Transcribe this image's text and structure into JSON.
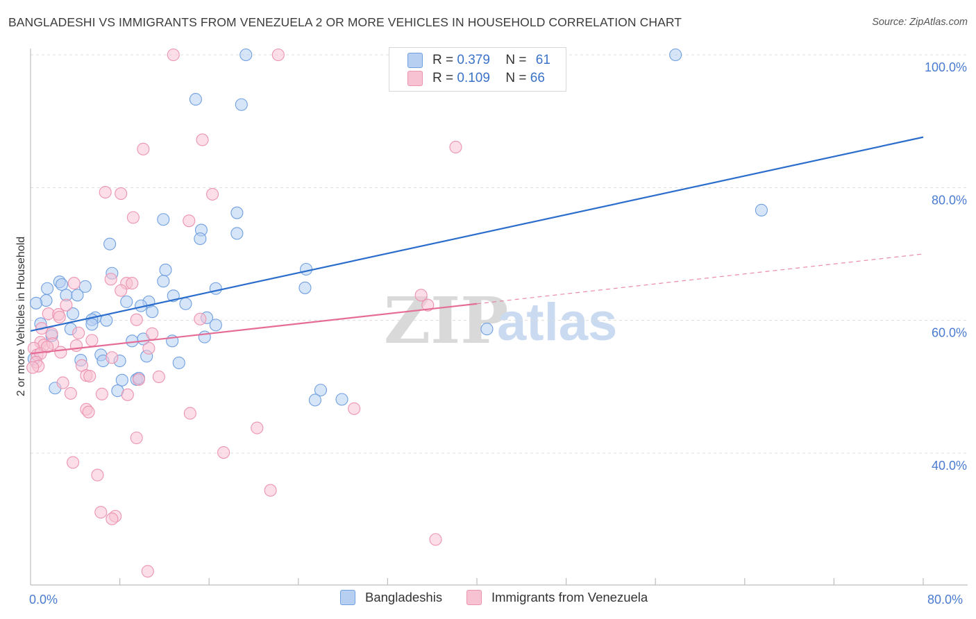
{
  "title": "BANGLADESHI VS IMMIGRANTS FROM VENEZUELA 2 OR MORE VEHICLES IN HOUSEHOLD CORRELATION CHART",
  "source": "Source: ZipAtlas.com",
  "watermark": {
    "zip": "ZIP",
    "atlas": "atlas"
  },
  "legend_top": [
    {
      "r_label": "R =",
      "r_value": "0.379",
      "n_label": "N =",
      "n_value": "61"
    },
    {
      "r_label": "R =",
      "r_value": "0.109",
      "n_label": "N =",
      "n_value": "66"
    }
  ],
  "colors": {
    "blue_fill": "#b7d0f2",
    "blue_stroke": "#6f9fe0",
    "blue_line": "#2a6dcc",
    "pink_fill": "#f7c3d3",
    "pink_stroke": "#ec93b0",
    "pink_line": "#e56c96",
    "tick": "#4a7bd0",
    "grid": "#dcdcdc"
  },
  "chart_data": {
    "type": "scatter",
    "title": "BANGLADESHI VS IMMIGRANTS FROM VENEZUELA 2 OR MORE VEHICLES IN HOUSEHOLD CORRELATION CHART",
    "xlabel": "",
    "ylabel": "2 or more Vehicles in Household",
    "xlim": [
      0,
      80
    ],
    "ylim": [
      20,
      102
    ],
    "x_ticks": [
      "0.0%",
      "80.0%"
    ],
    "y_ticks": [
      {
        "value": 100,
        "label": "100.0%"
      },
      {
        "value": 80,
        "label": "80.0%"
      },
      {
        "value": 60,
        "label": "60.0%"
      },
      {
        "value": 40,
        "label": "40.0%"
      }
    ],
    "grid": true,
    "legend_position": "bottom",
    "series": [
      {
        "name": "Bangladeshis",
        "color": "#6f9fe0",
        "trend": {
          "x": [
            0,
            80
          ],
          "y": [
            58.4,
            87.6
          ],
          "dashed_from": null
        },
        "points": [
          [
            19.3,
            100
          ],
          [
            57.8,
            100
          ],
          [
            14.8,
            93.3
          ],
          [
            18.9,
            92.5
          ],
          [
            65.5,
            76.6
          ],
          [
            18.5,
            76.2
          ],
          [
            11.9,
            75.2
          ],
          [
            15.3,
            73.6
          ],
          [
            18.5,
            73.1
          ],
          [
            15.2,
            72.3
          ],
          [
            7.1,
            71.5
          ],
          [
            12.1,
            67.6
          ],
          [
            24.7,
            67.7
          ],
          [
            7.3,
            67.1
          ],
          [
            2.6,
            65.8
          ],
          [
            11.9,
            65.9
          ],
          [
            2.8,
            65.4
          ],
          [
            4.9,
            65.1
          ],
          [
            1.5,
            64.8
          ],
          [
            16.6,
            64.8
          ],
          [
            24.6,
            64.9
          ],
          [
            3.2,
            63.8
          ],
          [
            4.2,
            63.8
          ],
          [
            12.8,
            63.7
          ],
          [
            1.4,
            63.0
          ],
          [
            0.5,
            62.6
          ],
          [
            8.6,
            62.8
          ],
          [
            10.6,
            62.8
          ],
          [
            9.9,
            62.2
          ],
          [
            13.9,
            62.5
          ],
          [
            3.8,
            61.0
          ],
          [
            10.9,
            61.3
          ],
          [
            5.8,
            60.4
          ],
          [
            6.8,
            60.0
          ],
          [
            5.5,
            60.1
          ],
          [
            5.5,
            59.4
          ],
          [
            15.8,
            60.4
          ],
          [
            16.6,
            59.3
          ],
          [
            0.9,
            59.5
          ],
          [
            3.6,
            58.7
          ],
          [
            40.9,
            58.7
          ],
          [
            15.6,
            57.5
          ],
          [
            10.1,
            57.2
          ],
          [
            1.9,
            57.7
          ],
          [
            9.1,
            56.9
          ],
          [
            12.7,
            56.9
          ],
          [
            6.3,
            54.8
          ],
          [
            10.4,
            54.6
          ],
          [
            0.3,
            54.2
          ],
          [
            4.5,
            54.0
          ],
          [
            8.0,
            53.9
          ],
          [
            6.5,
            53.9
          ],
          [
            13.3,
            53.6
          ],
          [
            8.2,
            51.0
          ],
          [
            9.5,
            51.1
          ],
          [
            9.7,
            51.3
          ],
          [
            2.2,
            49.8
          ],
          [
            7.8,
            49.4
          ],
          [
            26.0,
            49.5
          ],
          [
            25.5,
            48.0
          ],
          [
            27.9,
            48.1
          ]
        ]
      },
      {
        "name": "Immigrants from Venezuela",
        "color": "#ec93b0",
        "trend": {
          "x": [
            0,
            80
          ],
          "y": [
            55.0,
            70.0
          ],
          "dashed_from": 40
        },
        "points": [
          [
            12.8,
            100
          ],
          [
            22.2,
            100
          ],
          [
            15.4,
            87.2
          ],
          [
            10.1,
            85.8
          ],
          [
            38.1,
            86.1
          ],
          [
            6.7,
            79.3
          ],
          [
            8.1,
            79.1
          ],
          [
            16.3,
            79.0
          ],
          [
            9.2,
            75.5
          ],
          [
            14.2,
            75.0
          ],
          [
            7.2,
            66.2
          ],
          [
            3.9,
            65.6
          ],
          [
            8.6,
            65.6
          ],
          [
            9.1,
            65.6
          ],
          [
            8.1,
            64.5
          ],
          [
            35.0,
            63.8
          ],
          [
            3.2,
            62.3
          ],
          [
            35.6,
            62.3
          ],
          [
            1.6,
            61.0
          ],
          [
            2.5,
            60.9
          ],
          [
            2.6,
            60.5
          ],
          [
            9.5,
            60.1
          ],
          [
            15.2,
            60.2
          ],
          [
            1.0,
            58.8
          ],
          [
            4.3,
            58.1
          ],
          [
            1.9,
            58.0
          ],
          [
            10.9,
            58.0
          ],
          [
            5.5,
            57.0
          ],
          [
            0.9,
            56.7
          ],
          [
            1.2,
            56.3
          ],
          [
            2.0,
            56.5
          ],
          [
            4.1,
            56.2
          ],
          [
            10.6,
            55.8
          ],
          [
            0.3,
            55.8
          ],
          [
            2.7,
            55.2
          ],
          [
            0.6,
            54.8
          ],
          [
            0.9,
            55.0
          ],
          [
            7.3,
            54.4
          ],
          [
            0.5,
            53.7
          ],
          [
            0.7,
            53.1
          ],
          [
            4.6,
            53.2
          ],
          [
            5.0,
            51.7
          ],
          [
            5.3,
            51.6
          ],
          [
            11.5,
            51.5
          ],
          [
            9.7,
            51.1
          ],
          [
            2.9,
            50.6
          ],
          [
            3.6,
            49.0
          ],
          [
            6.4,
            48.9
          ],
          [
            8.7,
            48.8
          ],
          [
            29.0,
            46.7
          ],
          [
            5.0,
            46.6
          ],
          [
            5.2,
            46.2
          ],
          [
            14.3,
            46.0
          ],
          [
            20.3,
            43.8
          ],
          [
            9.5,
            42.3
          ],
          [
            17.3,
            40.1
          ],
          [
            3.8,
            38.6
          ],
          [
            6.0,
            36.7
          ],
          [
            21.5,
            34.4
          ],
          [
            6.3,
            31.1
          ],
          [
            7.6,
            30.5
          ],
          [
            7.3,
            30.1
          ],
          [
            36.3,
            27.0
          ],
          [
            10.5,
            22.2
          ],
          [
            0.2,
            52.9
          ],
          [
            1.5,
            56.0
          ]
        ]
      }
    ]
  }
}
